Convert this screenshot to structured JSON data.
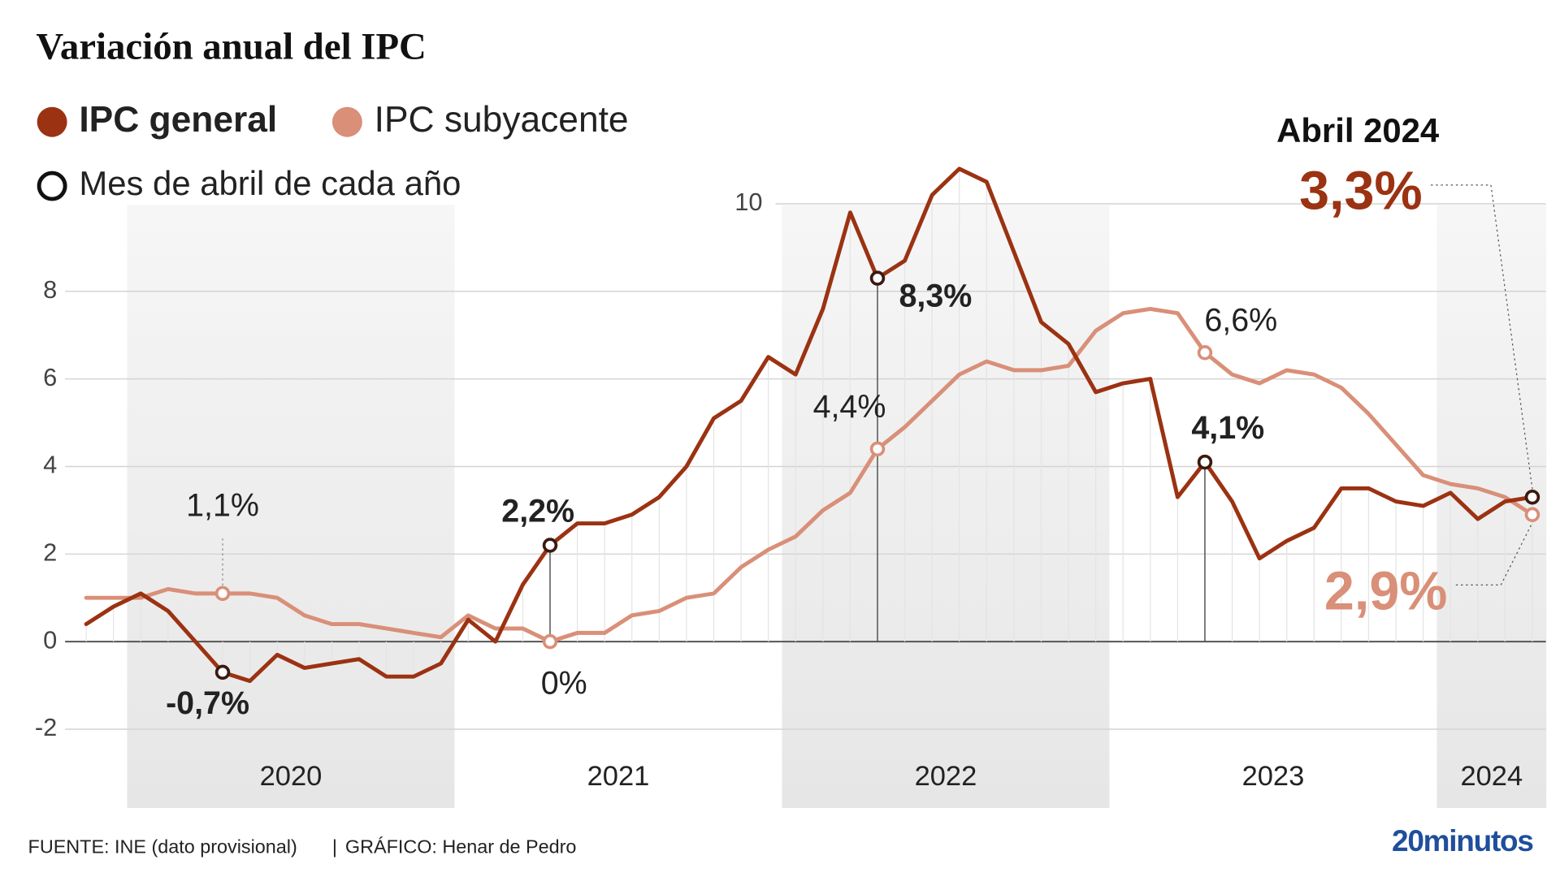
{
  "chart_data": {
    "type": "line",
    "title": "Variación anual del IPC",
    "categories": [
      null,
      null,
      null,
      null,
      null,
      null,
      null,
      null,
      null,
      null,
      null,
      null,
      null,
      null,
      null,
      null,
      null,
      null,
      null,
      null,
      null,
      null,
      null,
      null,
      null,
      null,
      null,
      null,
      null,
      null,
      null,
      null,
      null,
      null,
      null,
      null,
      null,
      null,
      null,
      null,
      null,
      null,
      null,
      null,
      null,
      null,
      null,
      null,
      null,
      null,
      null,
      null,
      null,
      null
    ],
    "year_labels": [
      "2020",
      "2021",
      "2022",
      "2023",
      "2024"
    ],
    "series": [
      {
        "name": "IPC general",
        "color": "#9b3212",
        "values": [
          0.4,
          0.8,
          1.1,
          0.7,
          0.0,
          -0.7,
          -0.9,
          -0.3,
          -0.6,
          -0.5,
          -0.4,
          -0.8,
          -0.8,
          -0.5,
          0.5,
          0.0,
          1.3,
          2.2,
          2.7,
          2.7,
          2.9,
          3.3,
          4.0,
          5.1,
          5.5,
          6.5,
          6.1,
          7.6,
          9.8,
          8.3,
          8.7,
          10.2,
          10.8,
          10.5,
          8.9,
          7.3,
          6.8,
          5.7,
          5.9,
          6.0,
          3.3,
          4.1,
          3.2,
          1.9,
          2.3,
          2.6,
          3.5,
          3.5,
          3.2,
          3.1,
          3.4,
          2.8,
          3.2,
          3.3
        ],
        "value_labels": [
          null,
          null,
          null,
          null,
          null,
          "-0,7%",
          null,
          null,
          null,
          null,
          null,
          null,
          null,
          null,
          null,
          null,
          null,
          "2,2%",
          null,
          null,
          null,
          null,
          null,
          null,
          null,
          null,
          null,
          null,
          null,
          "8,3%",
          null,
          null,
          null,
          null,
          null,
          null,
          null,
          null,
          null,
          null,
          null,
          "4,1%",
          null,
          null,
          null,
          null,
          null,
          null,
          null,
          null,
          null,
          null,
          null,
          "3,3%"
        ]
      },
      {
        "name": "IPC subyacente",
        "color": "#d98f78",
        "values": [
          1.0,
          1.0,
          1.0,
          1.2,
          1.1,
          1.1,
          1.1,
          1.0,
          0.6,
          0.4,
          0.4,
          0.3,
          0.2,
          0.1,
          0.6,
          0.3,
          0.3,
          0.0,
          0.2,
          0.2,
          0.6,
          0.7,
          1.0,
          1.1,
          1.7,
          2.1,
          2.4,
          3.0,
          3.4,
          4.4,
          4.9,
          5.5,
          6.1,
          6.4,
          6.2,
          6.2,
          6.3,
          7.1,
          7.5,
          7.6,
          7.5,
          6.6,
          6.1,
          5.9,
          6.2,
          6.1,
          5.8,
          5.2,
          4.5,
          3.8,
          3.6,
          3.5,
          3.3,
          2.9
        ],
        "value_labels": [
          null,
          null,
          null,
          null,
          null,
          "1,1%",
          null,
          null,
          null,
          null,
          null,
          null,
          null,
          null,
          null,
          null,
          null,
          "0%",
          null,
          null,
          null,
          null,
          null,
          null,
          null,
          null,
          null,
          null,
          null,
          "4,4%",
          null,
          null,
          null,
          null,
          null,
          null,
          null,
          null,
          null,
          null,
          null,
          "6,6%",
          null,
          null,
          null,
          null,
          null,
          null,
          null,
          null,
          null,
          null,
          null,
          "2,9%"
        ]
      }
    ],
    "marker_legend": "Mes de abril de cada año",
    "annotation": "Abril 2024",
    "ylim": [
      -3.8,
      11
    ],
    "yticks": [
      -2,
      0,
      2,
      4,
      6,
      8,
      10
    ],
    "grid": true
  },
  "footer": {
    "source": "FUENTE: INE (dato provisional)",
    "separator": "|",
    "credit": "GRÁFICO: Henar de Pedro",
    "logo": "20minutos"
  }
}
